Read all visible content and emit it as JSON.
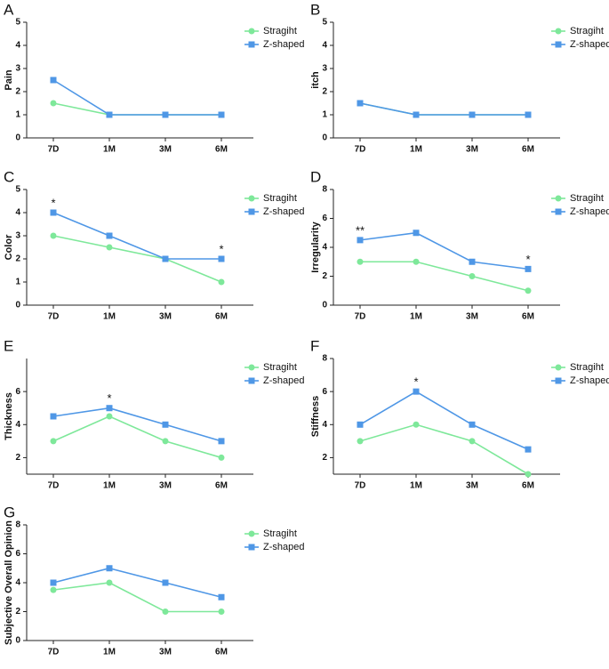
{
  "chart_data": [
    {
      "type": "line",
      "panel": "A",
      "ylabel": "Pain",
      "categories": [
        "7D",
        "1M",
        "3M",
        "6M"
      ],
      "ylim": [
        0,
        5
      ],
      "yticks": [
        0,
        1,
        2,
        3,
        4,
        5
      ],
      "series": [
        {
          "name": "Stragiht",
          "color": "#7ee89a",
          "marker": "circle",
          "values": [
            1.5,
            1,
            1,
            1
          ]
        },
        {
          "name": "Z-shaped",
          "color": "#4f97e6",
          "marker": "square",
          "values": [
            2.5,
            1,
            1,
            1
          ]
        }
      ],
      "annotations": []
    },
    {
      "type": "line",
      "panel": "B",
      "ylabel": "itch",
      "categories": [
        "7D",
        "1M",
        "3M",
        "6M"
      ],
      "ylim": [
        0,
        5
      ],
      "yticks": [
        0,
        1,
        2,
        3,
        4,
        5
      ],
      "series": [
        {
          "name": "Stragiht",
          "color": "#7ee89a",
          "marker": "circle",
          "values": [
            1.5,
            1,
            1,
            1
          ]
        },
        {
          "name": "Z-shaped",
          "color": "#4f97e6",
          "marker": "square",
          "values": [
            1.5,
            1,
            1,
            1
          ]
        }
      ],
      "annotations": []
    },
    {
      "type": "line",
      "panel": "C",
      "ylabel": "Color",
      "categories": [
        "7D",
        "1M",
        "3M",
        "6M"
      ],
      "ylim": [
        0,
        5
      ],
      "yticks": [
        0,
        1,
        2,
        3,
        4,
        5
      ],
      "series": [
        {
          "name": "Stragiht",
          "color": "#7ee89a",
          "marker": "circle",
          "values": [
            3,
            2.5,
            2,
            1
          ]
        },
        {
          "name": "Z-shaped",
          "color": "#4f97e6",
          "marker": "square",
          "values": [
            4,
            3,
            2,
            2
          ]
        }
      ],
      "annotations": [
        {
          "text": "*",
          "x": "7D"
        },
        {
          "text": "*",
          "x": "6M"
        }
      ]
    },
    {
      "type": "line",
      "panel": "D",
      "ylabel": "Irregularity",
      "categories": [
        "7D",
        "1M",
        "3M",
        "6M"
      ],
      "ylim": [
        0,
        8
      ],
      "yticks": [
        0,
        2,
        4,
        6,
        8
      ],
      "series": [
        {
          "name": "Stragiht",
          "color": "#7ee89a",
          "marker": "circle",
          "values": [
            3,
            3,
            2,
            1
          ]
        },
        {
          "name": "Z-shaped",
          "color": "#4f97e6",
          "marker": "square",
          "values": [
            4.5,
            5,
            3,
            2.5
          ]
        }
      ],
      "annotations": [
        {
          "text": "**",
          "x": "7D"
        },
        {
          "text": "*",
          "x": "6M"
        }
      ]
    },
    {
      "type": "line",
      "panel": "E",
      "ylabel": "Thickness",
      "categories": [
        "7D",
        "1M",
        "3M",
        "6M"
      ],
      "ylim": [
        1,
        8
      ],
      "yticks": [
        2,
        4,
        6
      ],
      "series": [
        {
          "name": "Stragiht",
          "color": "#7ee89a",
          "marker": "circle",
          "values": [
            3,
            4.5,
            3,
            2
          ]
        },
        {
          "name": "Z-shaped",
          "color": "#4f97e6",
          "marker": "square",
          "values": [
            4.5,
            5,
            4,
            3
          ]
        }
      ],
      "annotations": [
        {
          "text": "*",
          "x": "1M"
        }
      ]
    },
    {
      "type": "line",
      "panel": "F",
      "ylabel": "Stiffness",
      "categories": [
        "7D",
        "1M",
        "3M",
        "6M"
      ],
      "ylim": [
        1,
        8
      ],
      "yticks": [
        2,
        4,
        6,
        8
      ],
      "series": [
        {
          "name": "Stragiht",
          "color": "#7ee89a",
          "marker": "circle",
          "values": [
            3,
            4,
            3,
            1
          ]
        },
        {
          "name": "Z-shaped",
          "color": "#4f97e6",
          "marker": "square",
          "values": [
            4,
            6,
            4,
            2.5
          ]
        }
      ],
      "annotations": [
        {
          "text": "*",
          "x": "1M"
        }
      ]
    },
    {
      "type": "line",
      "panel": "G",
      "ylabel": "Subjective Overall Opinion",
      "categories": [
        "7D",
        "1M",
        "3M",
        "6M"
      ],
      "ylim": [
        0,
        8
      ],
      "yticks": [
        0,
        2,
        4,
        6,
        8
      ],
      "series": [
        {
          "name": "Stragiht",
          "color": "#7ee89a",
          "marker": "circle",
          "values": [
            3.5,
            4,
            2,
            2
          ]
        },
        {
          "name": "Z-shaped",
          "color": "#4f97e6",
          "marker": "square",
          "values": [
            4,
            5,
            4,
            3
          ]
        }
      ],
      "annotations": []
    }
  ]
}
